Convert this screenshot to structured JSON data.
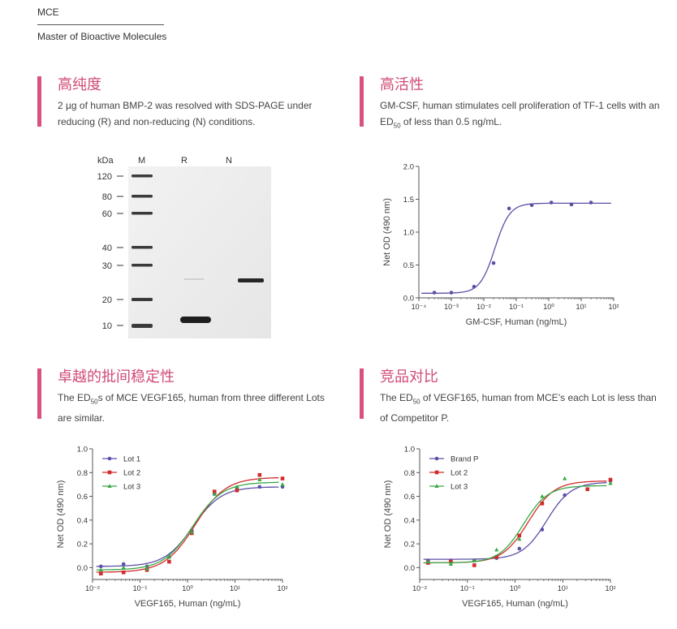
{
  "brand": {
    "name": "MCE",
    "tagline": "Master of Bioactive Molecules"
  },
  "colors": {
    "accent": "#d14b76",
    "lot1": "#5c4fa6",
    "lot2": "#d22b2b",
    "lot3": "#3aa845"
  },
  "sections": {
    "purity": {
      "title": "高纯度",
      "desc": "2 µg of human BMP-2  was resolved with SDS-PAGE under reducing (R) and non-reducing (N) conditions."
    },
    "activity": {
      "title": "高活性",
      "desc_1": "GM-CSF, human stimulates cell proliferation of TF-1 cells with an ED",
      "desc_sub": "50",
      "desc_2": " of less than 0.5 ng/mL."
    },
    "stability": {
      "title": "卓越的批间稳定性",
      "desc_1": "The ED",
      "desc_sub": "50",
      "desc_2": "s of MCE VEGF165, human from three different Lots are similar."
    },
    "compare": {
      "title": "竞品对比",
      "desc_1": "The ED",
      "desc_sub": "50",
      "desc_2": " of VEGF165, human from MCE’s each Lot is less than of Competitor P."
    }
  },
  "gel": {
    "unit_label": "kDa",
    "lanes": [
      "M",
      "R",
      "N"
    ],
    "markers": [
      "120",
      "80",
      "60",
      "40",
      "30",
      "20",
      "10"
    ]
  },
  "chart_data": [
    {
      "type": "scatter",
      "xlabel": "GM-CSF, Human (ng/mL)",
      "ylabel": "Net OD (490 nm)",
      "xscale": "log",
      "xlim": [
        0.0001,
        100
      ],
      "ylim": [
        0,
        2.0
      ],
      "xticks": [
        "10⁻⁴",
        "10⁻³",
        "10⁻²",
        "10⁻¹",
        "10⁰",
        "10¹",
        "10²"
      ],
      "yticks": [
        "0.0",
        "0.5",
        "1.0",
        "1.5",
        "2.0"
      ],
      "grid": false,
      "series": [
        {
          "x": [
            0.0003,
            0.001,
            0.005,
            0.02,
            0.06,
            0.3,
            1.2,
            5,
            20
          ],
          "y": [
            0.08,
            0.08,
            0.17,
            0.53,
            1.36,
            1.41,
            1.45,
            1.42,
            1.45
          ]
        }
      ]
    },
    {
      "type": "line",
      "xlabel": "VEGF165, Human (ng/mL)",
      "ylabel": "Net OD (490 nm)",
      "xscale": "log",
      "xlim": [
        0.01,
        100
      ],
      "ylim": [
        -0.1,
        1.0
      ],
      "xticks": [
        "10⁻²",
        "10⁻¹",
        "10⁰",
        "10¹",
        "10²"
      ],
      "yticks": [
        "0.0",
        "0.2",
        "0.4",
        "0.6",
        "0.8",
        "1.0"
      ],
      "grid": false,
      "legend": "top-left",
      "series": [
        {
          "name": "Lot 1",
          "x": [
            0.015,
            0.045,
            0.14,
            0.41,
            1.23,
            3.7,
            11,
            33,
            100
          ],
          "y": [
            0.01,
            0.03,
            0.01,
            0.09,
            0.31,
            0.62,
            0.67,
            0.68,
            0.68
          ]
        },
        {
          "name": "Lot 2",
          "x": [
            0.015,
            0.045,
            0.14,
            0.41,
            1.23,
            3.7,
            11,
            33,
            100
          ],
          "y": [
            -0.05,
            -0.04,
            -0.02,
            0.05,
            0.29,
            0.64,
            0.65,
            0.78,
            0.75
          ]
        },
        {
          "name": "Lot 3",
          "x": [
            0.015,
            0.045,
            0.14,
            0.41,
            1.23,
            3.7,
            11,
            33,
            100
          ],
          "y": [
            -0.02,
            0.0,
            -0.01,
            0.09,
            0.3,
            0.62,
            0.68,
            0.74,
            0.7
          ]
        }
      ]
    },
    {
      "type": "line",
      "xlabel": "VEGF165, Human (ng/mL)",
      "ylabel": "Net OD (490 nm)",
      "xscale": "log",
      "xlim": [
        0.01,
        100
      ],
      "ylim": [
        -0.1,
        1.0
      ],
      "xticks": [
        "10⁻²",
        "10⁻¹",
        "10⁰",
        "10¹",
        "10²"
      ],
      "yticks": [
        "0.0",
        "0.2",
        "0.4",
        "0.6",
        "0.8",
        "1.0"
      ],
      "grid": false,
      "legend": "top-left",
      "series": [
        {
          "name": "Brand P",
          "x": [
            0.015,
            0.045,
            0.14,
            0.41,
            1.23,
            3.7,
            11,
            100
          ],
          "y": [
            0.06,
            0.06,
            0.06,
            0.08,
            0.16,
            0.32,
            0.61,
            0.73
          ]
        },
        {
          "name": "Lot 2",
          "x": [
            0.015,
            0.045,
            0.14,
            0.41,
            1.23,
            3.7,
            33,
            100
          ],
          "y": [
            0.04,
            0.05,
            0.02,
            0.09,
            0.27,
            0.54,
            0.66,
            0.74
          ]
        },
        {
          "name": "Lot 3",
          "x": [
            0.015,
            0.045,
            0.14,
            0.41,
            1.23,
            3.7,
            11,
            100
          ],
          "y": [
            0.05,
            0.03,
            0.06,
            0.15,
            0.24,
            0.6,
            0.75,
            0.71
          ]
        }
      ]
    }
  ]
}
